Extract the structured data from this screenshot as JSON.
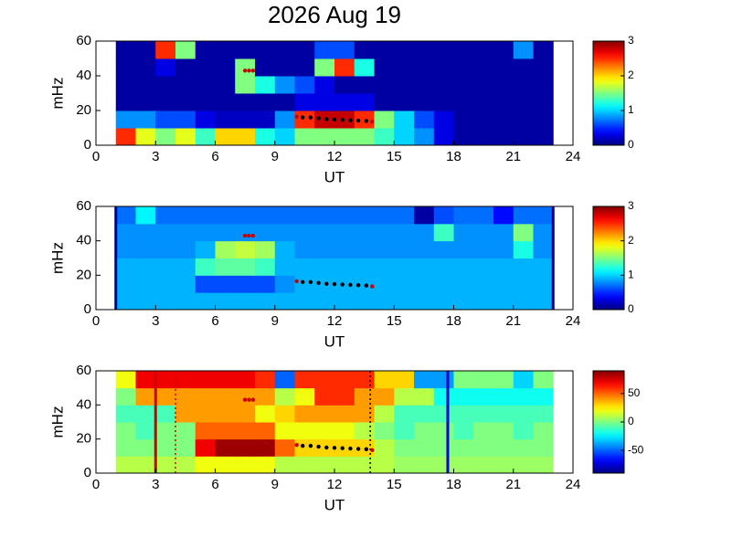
{
  "chart_data": [
    {
      "type": "heatmap",
      "title": "2026 Aug 19",
      "xlabel": "UT",
      "ylabel": "mHz",
      "colormap": "jet",
      "xlim": [
        0,
        24
      ],
      "xticks": [
        0,
        3,
        6,
        9,
        12,
        15,
        18,
        21,
        24
      ],
      "ylim": [
        0,
        60
      ],
      "yticks": [
        0,
        20,
        40,
        60
      ],
      "clim": [
        0,
        3
      ],
      "cticks": [
        0,
        1,
        2,
        3
      ],
      "xbins": [
        1,
        2,
        3,
        4,
        5,
        6,
        7,
        8,
        9,
        10,
        11,
        12,
        13,
        14,
        15,
        16,
        17,
        18,
        19,
        20,
        21,
        22,
        23
      ],
      "ybins": [
        0,
        10,
        20,
        30,
        40,
        50,
        60
      ],
      "values": [
        [
          2.5,
          1.8,
          1.5,
          1.8,
          1.3,
          2,
          2,
          1.2,
          1,
          1.5,
          1.5,
          1.5,
          1.5,
          1.3,
          1,
          0.8,
          0.3,
          0.1,
          0.1,
          0.1,
          0.1,
          0.1
        ],
        [
          0.8,
          0.8,
          0.6,
          0.6,
          0.3,
          0.2,
          0.2,
          0.2,
          0.8,
          2.5,
          2.8,
          2.8,
          2.5,
          1.5,
          1,
          0.6,
          0.3,
          0.1,
          0.1,
          0.1,
          0.1,
          0.1
        ],
        [
          0.1,
          0.1,
          0.1,
          0.1,
          0.1,
          0.1,
          0.1,
          0.1,
          0.1,
          0.3,
          0.3,
          0.3,
          0.3,
          0.1,
          0.1,
          0.1,
          0.1,
          0.1,
          0.1,
          0.1,
          0.1,
          0.1
        ],
        [
          0.1,
          0.1,
          0.1,
          0.1,
          0.1,
          0.1,
          1.5,
          1.2,
          0.8,
          0.6,
          0.3,
          0.1,
          0.1,
          0.1,
          0.1,
          0.1,
          0.1,
          0.1,
          0.1,
          0.1,
          0.1,
          0.1
        ],
        [
          0.1,
          0.1,
          0.3,
          0.1,
          0.1,
          0.1,
          1.5,
          0.1,
          0.1,
          0.1,
          1.5,
          2.5,
          1.2,
          0.1,
          0.1,
          0.1,
          0.1,
          0.1,
          0.1,
          0.1,
          0.1,
          0.1
        ],
        [
          0.1,
          0.1,
          2.5,
          1.5,
          0.1,
          0.1,
          0.1,
          0.1,
          0.1,
          0.1,
          0.6,
          0.6,
          0.1,
          0.1,
          0.1,
          0.1,
          0.1,
          0.1,
          0.1,
          0.1,
          0.8,
          0.1
        ]
      ],
      "vlines": [],
      "markers": [
        {
          "color": "#cc0000",
          "x": [
            7.5,
            7.7,
            7.9,
            10.1,
            13.9
          ],
          "y": [
            43,
            43,
            43,
            16.5,
            13.5
          ]
        },
        {
          "color": "#000000",
          "x": [
            10.4,
            10.8,
            11.2,
            11.6,
            12,
            12.4,
            12.8,
            13.2,
            13.6
          ],
          "y": [
            16,
            16,
            15.5,
            15,
            14.8,
            14.6,
            14.4,
            14.2,
            14
          ]
        }
      ]
    },
    {
      "type": "heatmap",
      "xlabel": "UT",
      "ylabel": "mHz",
      "colormap": "jet",
      "xlim": [
        0,
        24
      ],
      "xticks": [
        0,
        3,
        6,
        9,
        12,
        15,
        18,
        21,
        24
      ],
      "ylim": [
        0,
        60
      ],
      "yticks": [
        0,
        20,
        40,
        60
      ],
      "clim": [
        0,
        3
      ],
      "cticks": [
        0,
        1,
        2,
        3
      ],
      "xbins": [
        1,
        2,
        3,
        4,
        5,
        6,
        7,
        8,
        9,
        10,
        11,
        12,
        13,
        14,
        15,
        16,
        17,
        18,
        19,
        20,
        21,
        22,
        23
      ],
      "ybins": [
        0,
        10,
        20,
        30,
        40,
        50,
        60
      ],
      "values": [
        [
          0.9,
          0.9,
          0.9,
          0.9,
          0.9,
          0.9,
          0.9,
          0.9,
          0.9,
          0.9,
          0.9,
          0.9,
          0.9,
          0.9,
          0.9,
          0.9,
          0.9,
          0.9,
          0.9,
          0.9,
          0.9,
          0.9
        ],
        [
          0.9,
          0.9,
          0.9,
          0.9,
          0.6,
          0.6,
          0.6,
          0.6,
          0.8,
          0.9,
          0.9,
          0.9,
          0.9,
          0.9,
          0.9,
          0.9,
          0.9,
          0.9,
          0.9,
          0.9,
          0.9,
          0.9
        ],
        [
          0.9,
          0.9,
          0.9,
          0.9,
          1.3,
          1.4,
          1.4,
          1.3,
          0.9,
          0.9,
          0.9,
          0.9,
          0.9,
          0.9,
          0.9,
          0.9,
          0.9,
          0.9,
          0.9,
          0.9,
          0.9,
          0.9
        ],
        [
          0.8,
          0.8,
          0.8,
          0.8,
          0.9,
          1.6,
          1.7,
          1.6,
          0.9,
          0.8,
          0.8,
          0.8,
          0.8,
          0.8,
          0.8,
          0.8,
          0.8,
          0.8,
          0.8,
          0.8,
          1.2,
          0.8
        ],
        [
          0.8,
          0.8,
          0.8,
          0.8,
          0.8,
          0.8,
          0.8,
          0.8,
          0.8,
          0.8,
          0.8,
          0.8,
          0.8,
          0.8,
          0.8,
          0.8,
          1.3,
          0.8,
          0.8,
          0.8,
          1.5,
          0.8
        ],
        [
          0.7,
          1.1,
          0.7,
          0.7,
          0.7,
          0.7,
          0.7,
          0.7,
          0.7,
          0.7,
          0.7,
          0.7,
          0.7,
          0.7,
          0.7,
          0.1,
          0.6,
          0.7,
          0.7,
          0.4,
          0.7,
          0.7
        ]
      ],
      "vlines": [
        {
          "x": 1,
          "color": "#00008f",
          "style": "solid"
        },
        {
          "x": 23,
          "color": "#00008f",
          "style": "solid"
        }
      ],
      "markers": [
        {
          "color": "#cc0000",
          "x": [
            7.5,
            7.7,
            7.9,
            10.1,
            13.9
          ],
          "y": [
            43,
            43,
            43,
            16.5,
            13.5
          ]
        },
        {
          "color": "#000000",
          "x": [
            10.4,
            10.8,
            11.2,
            11.6,
            12,
            12.4,
            12.8,
            13.2,
            13.6
          ],
          "y": [
            16,
            16,
            15.5,
            15,
            14.8,
            14.6,
            14.4,
            14.2,
            14
          ]
        }
      ]
    },
    {
      "type": "heatmap",
      "xlabel": "UT",
      "ylabel": "mHz",
      "colormap": "jet",
      "xlim": [
        0,
        24
      ],
      "xticks": [
        0,
        3,
        6,
        9,
        12,
        15,
        18,
        21,
        24
      ],
      "ylim": [
        0,
        60
      ],
      "yticks": [
        0,
        20,
        40,
        60
      ],
      "clim": [
        -90,
        90
      ],
      "cticks": [
        -50,
        0,
        50
      ],
      "xbins": [
        1,
        2,
        3,
        4,
        5,
        6,
        7,
        8,
        9,
        10,
        11,
        12,
        13,
        14,
        15,
        16,
        17,
        18,
        19,
        20,
        21,
        22,
        23
      ],
      "ybins": [
        0,
        10,
        20,
        30,
        40,
        50,
        60
      ],
      "values": [
        [
          10,
          10,
          10,
          10,
          20,
          20,
          20,
          20,
          10,
          10,
          10,
          10,
          10,
          10,
          5,
          5,
          5,
          5,
          5,
          5,
          5,
          5
        ],
        [
          0,
          0,
          0,
          0,
          70,
          85,
          85,
          85,
          50,
          30,
          30,
          30,
          30,
          10,
          0,
          0,
          0,
          0,
          0,
          0,
          0,
          0
        ],
        [
          0,
          -10,
          0,
          0,
          50,
          50,
          50,
          50,
          20,
          20,
          20,
          20,
          10,
          0,
          -10,
          0,
          0,
          -10,
          0,
          0,
          -10,
          0
        ],
        [
          -10,
          -10,
          -10,
          40,
          40,
          40,
          40,
          20,
          30,
          40,
          40,
          40,
          40,
          10,
          -10,
          -10,
          -10,
          -10,
          -10,
          -10,
          -10,
          -10
        ],
        [
          0,
          40,
          40,
          40,
          40,
          40,
          40,
          40,
          10,
          20,
          60,
          60,
          40,
          40,
          10,
          10,
          -20,
          -20,
          -20,
          -20,
          -20,
          -20
        ],
        [
          20,
          70,
          70,
          70,
          70,
          70,
          70,
          60,
          -50,
          60,
          60,
          60,
          60,
          30,
          30,
          -40,
          -40,
          0,
          0,
          0,
          -30,
          0
        ]
      ],
      "vlines": [
        {
          "x": 3,
          "color": "#cc0000",
          "style": "solid"
        },
        {
          "x": 4,
          "color": "#cc0000",
          "style": "dotted"
        },
        {
          "x": 13.8,
          "color": "#000000",
          "style": "dotted"
        },
        {
          "x": 17.7,
          "color": "#0000cc",
          "style": "solid"
        }
      ],
      "markers": [
        {
          "color": "#cc0000",
          "x": [
            7.5,
            7.7,
            7.9,
            10.1,
            13.9
          ],
          "y": [
            43,
            43,
            43,
            16.5,
            13.5
          ]
        },
        {
          "color": "#000000",
          "x": [
            10.4,
            10.8,
            11.2,
            11.6,
            12,
            12.4,
            12.8,
            13.2,
            13.6
          ],
          "y": [
            16,
            16,
            15.5,
            15,
            14.8,
            14.6,
            14.4,
            14.2,
            14
          ]
        }
      ]
    }
  ]
}
